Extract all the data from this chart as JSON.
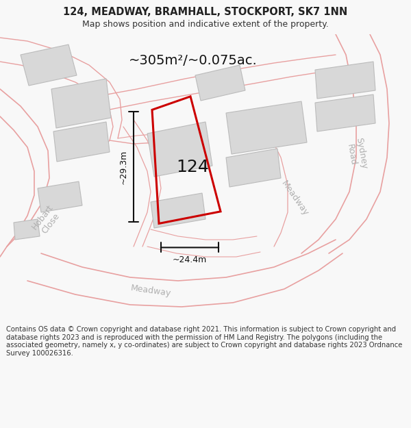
{
  "title": "124, MEADWAY, BRAMHALL, STOCKPORT, SK7 1NN",
  "subtitle": "Map shows position and indicative extent of the property.",
  "area_label": "~305m²/~0.075ac.",
  "width_label": "~24.4m",
  "height_label": "~29.3m",
  "house_number": "124",
  "footer": "Contains OS data © Crown copyright and database right 2021. This information is subject to Crown copyright and database rights 2023 and is reproduced with the permission of HM Land Registry. The polygons (including the associated geometry, namely x, y co-ordinates) are subject to Crown copyright and database rights 2023 Ordnance Survey 100026316.",
  "bg_color": "#f8f8f8",
  "map_bg": "#ffffff",
  "pink_road": "#e8a0a0",
  "red_plot": "#cc0000",
  "building_fill": "#d8d8d8",
  "building_stroke": "#bbbbbb",
  "street_label_color": "#b0b0b0",
  "dim_color": "#111111",
  "title_fontsize": 10.5,
  "subtitle_fontsize": 9,
  "footer_fontsize": 7.2,
  "area_fontsize": 14,
  "house_fontsize": 18,
  "dim_fontsize": 9,
  "street_fontsize": 9
}
